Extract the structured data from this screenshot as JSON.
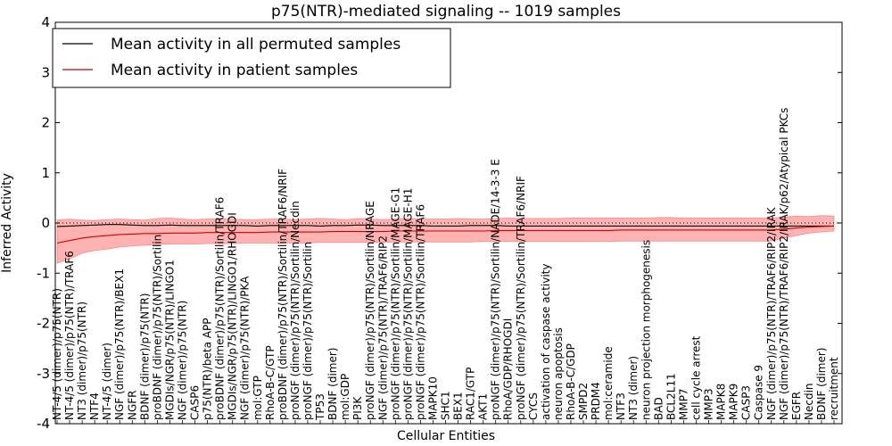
{
  "chart_data": {
    "type": "line",
    "title": "p75(NTR)-mediated signaling -- 1019 samples",
    "xlabel": "Cellular Entities",
    "ylabel": "Inferred Activity",
    "ylim": [
      -4,
      4
    ],
    "yticks": [
      -4,
      -3,
      -2,
      -1,
      0,
      1,
      2,
      3,
      4
    ],
    "grid": false,
    "legend_position": "top-left",
    "colors": {
      "permuted": "#000000",
      "patient": "#cc0000",
      "band": "#ff0000",
      "zero_line": "#000000"
    },
    "legend": [
      {
        "name": "Mean activity in all permuted samples",
        "color": "#000000"
      },
      {
        "name": "Mean activity in patient samples",
        "color": "#cc0000"
      }
    ],
    "categories": [
      "NT-4/5 (dimer)/p75(NTR)",
      "NT-4/5 (dimer)/p75(NTR)/TRAF6",
      "NT3 (dimer)/p75(NTR)",
      "NTF4",
      "NT-4/5 (dimer)",
      "NGF (dimer)/p75(NTR)/BEX1",
      "NGFR",
      "BDNF (dimer)/p75(NTR)",
      "proBDNF (dimer)/p75(NTR)/Sortilin",
      "MGDIs/NGR/p75(NTR)/LINGO1",
      "NGF (dimer)/p75(NTR)",
      "CASP6",
      "p75(NTR)/beta APP",
      "proBDNF (dimer)/p75(NTR)/Sortilin/TRAF6",
      "MGDIs/NGR/p75(NTR)/LINGO1/RHOGDI",
      "NGF (dimer)/p75(NTR)/PKA",
      "mol:GTP",
      "RhoA-B-C/GTP",
      "proBDNF (dimer)/p75(NTR)/Sortilin/TRAF6/NRIF",
      "proNGF (dimer)/p75(NTR)/Sortilin/Necdin",
      "proNGF (dimer)/p75(NTR)/Sortilin",
      "TP53",
      "BDNF (dimer)",
      "mol:GDP",
      "PI3K",
      "proNGF (dimer)/p75(NTR)/Sortilin/NRAGE",
      "NGF (dimer)/p75(NTR)/TRAF6/RIP2",
      "proNGF (dimer)/p75(NTR)/Sortilin/MAGE-G1",
      "proNGF (dimer)/p75(NTR)/Sortilin/MAGE-H1",
      "proNGF (dimer)/p75(NTR)/Sortilin/TRAF6",
      "MAPK10",
      "SHC1",
      "BEX1",
      "RAC1/GTP",
      "AKT1",
      "proNGF (dimer)/p75(NTR)/Sortilin/NADE/14-3-3 E",
      "RhoA/GDP/RHOGDI",
      "proNGF (dimer)/p75(NTR)/Sortilin/TRAF6/NRIF",
      "CYCS",
      "activation of caspase activity",
      "neuron apoptosis",
      "RhoA-B-C/GDP",
      "SMPD2",
      "PRDM4",
      "mol:ceramide",
      "NTF3",
      "NT3 (dimer)",
      "neuron projection morphogenesis",
      "BAD",
      "BCL2L11",
      "MMP7",
      "cell cycle arrest",
      "MMP3",
      "MAPK8",
      "MAPK9",
      "CASP3",
      "Caspase 9",
      "NGF (dimer)/p75(NTR)/TRAF6/RIP2/IRAK",
      "NGF (dimer)/p75(NTR)/TRAF6/RIP2/IRAK/p62/Atypical PKCs",
      "EGFR",
      "Necdin",
      "BDNF (dimer)",
      "recruitment"
    ],
    "series": [
      {
        "name": "Mean activity in all permuted samples",
        "values": [
          -0.07,
          -0.06,
          -0.05,
          -0.04,
          -0.03,
          -0.03,
          -0.04,
          -0.05,
          -0.05,
          -0.04,
          -0.05,
          -0.05,
          -0.05,
          -0.05,
          -0.05,
          -0.05,
          -0.06,
          -0.05,
          -0.05,
          -0.05,
          -0.05,
          -0.06,
          -0.05,
          -0.05,
          -0.04,
          -0.04,
          -0.05,
          -0.05,
          -0.05,
          -0.05,
          -0.06,
          -0.06,
          -0.06,
          -0.05,
          -0.05,
          -0.05,
          -0.06,
          -0.06,
          -0.06,
          -0.06,
          -0.06,
          -0.06,
          -0.06,
          -0.06,
          -0.06,
          -0.06,
          -0.06,
          -0.06,
          -0.06,
          -0.06,
          -0.06,
          -0.06,
          -0.06,
          -0.06,
          -0.06,
          -0.06,
          -0.06,
          -0.06,
          -0.06,
          -0.06,
          -0.06,
          -0.06,
          -0.06
        ]
      },
      {
        "name": "Mean activity in patient samples",
        "values": [
          -0.4,
          -0.35,
          -0.3,
          -0.27,
          -0.25,
          -0.23,
          -0.22,
          -0.21,
          -0.21,
          -0.2,
          -0.2,
          -0.2,
          -0.19,
          -0.19,
          -0.19,
          -0.19,
          -0.19,
          -0.18,
          -0.18,
          -0.18,
          -0.18,
          -0.18,
          -0.17,
          -0.17,
          -0.17,
          -0.17,
          -0.17,
          -0.16,
          -0.16,
          -0.16,
          -0.16,
          -0.16,
          -0.16,
          -0.16,
          -0.16,
          -0.15,
          -0.15,
          -0.15,
          -0.15,
          -0.15,
          -0.15,
          -0.15,
          -0.15,
          -0.15,
          -0.15,
          -0.14,
          -0.14,
          -0.14,
          -0.14,
          -0.14,
          -0.14,
          -0.14,
          -0.14,
          -0.14,
          -0.14,
          -0.14,
          -0.14,
          -0.14,
          -0.12,
          -0.1,
          -0.08,
          -0.07,
          -0.06
        ]
      }
    ],
    "band": {
      "name": "patient activity spread",
      "upper": [
        0.06,
        0.08,
        0.06,
        0.05,
        0.07,
        0.08,
        0.07,
        0.06,
        0.09,
        0.1,
        0.08,
        0.07,
        0.08,
        0.09,
        0.08,
        0.07,
        0.07,
        0.08,
        0.08,
        0.07,
        0.08,
        0.09,
        0.08,
        0.07,
        0.09,
        0.08,
        0.07,
        0.08,
        0.09,
        0.08,
        0.08,
        0.08,
        0.09,
        0.08,
        0.08,
        0.09,
        0.1,
        0.09,
        0.09,
        0.09,
        0.09,
        0.1,
        0.1,
        0.1,
        0.1,
        0.1,
        0.1,
        0.1,
        0.11,
        0.11,
        0.1,
        0.1,
        0.1,
        0.1,
        0.1,
        0.1,
        0.1,
        0.1,
        0.12,
        0.14,
        0.13,
        0.15,
        0.14
      ],
      "lower": [
        -0.8,
        -0.72,
        -0.6,
        -0.55,
        -0.52,
        -0.48,
        -0.46,
        -0.44,
        -0.43,
        -0.42,
        -0.42,
        -0.42,
        -0.41,
        -0.41,
        -0.41,
        -0.4,
        -0.4,
        -0.4,
        -0.4,
        -0.4,
        -0.4,
        -0.39,
        -0.39,
        -0.39,
        -0.39,
        -0.39,
        -0.39,
        -0.38,
        -0.38,
        -0.38,
        -0.38,
        -0.38,
        -0.38,
        -0.38,
        -0.37,
        -0.37,
        -0.37,
        -0.37,
        -0.37,
        -0.37,
        -0.37,
        -0.37,
        -0.37,
        -0.37,
        -0.37,
        -0.36,
        -0.36,
        -0.36,
        -0.36,
        -0.36,
        -0.36,
        -0.36,
        -0.36,
        -0.36,
        -0.36,
        -0.36,
        -0.36,
        -0.36,
        -0.3,
        -0.25,
        -0.2,
        -0.18,
        -0.16
      ]
    }
  }
}
